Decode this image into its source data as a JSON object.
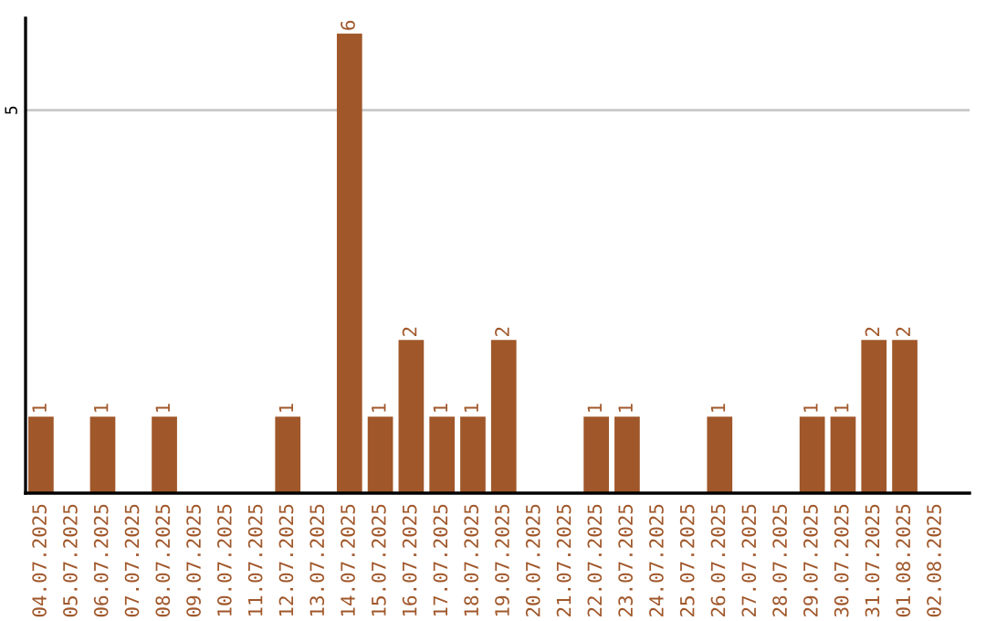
{
  "chart_data": {
    "type": "bar",
    "categories": [
      "04.07.2025",
      "05.07.2025",
      "06.07.2025",
      "07.07.2025",
      "08.07.2025",
      "09.07.2025",
      "10.07.2025",
      "11.07.2025",
      "12.07.2025",
      "13.07.2025",
      "14.07.2025",
      "15.07.2025",
      "16.07.2025",
      "17.07.2025",
      "18.07.2025",
      "19.07.2025",
      "20.07.2025",
      "21.07.2025",
      "22.07.2025",
      "23.07.2025",
      "24.07.2025",
      "25.07.2025",
      "26.07.2025",
      "27.07.2025",
      "28.07.2025",
      "29.07.2025",
      "30.07.2025",
      "31.07.2025",
      "01.08.2025",
      "02.08.2025"
    ],
    "values": [
      1,
      0,
      1,
      0,
      1,
      0,
      0,
      0,
      1,
      0,
      6,
      1,
      2,
      1,
      1,
      2,
      0,
      0,
      1,
      1,
      0,
      0,
      1,
      0,
      0,
      1,
      1,
      2,
      2,
      0
    ],
    "value_labels": [
      "1",
      null,
      "1",
      null,
      "1",
      null,
      null,
      null,
      "1",
      null,
      "6",
      "1",
      "2",
      "1",
      "1",
      "2",
      null,
      null,
      "1",
      "1",
      null,
      null,
      "1",
      null,
      null,
      "1",
      "1",
      "2",
      "2",
      null
    ],
    "color": "#a0572a",
    "ylim": [
      0,
      6.2
    ],
    "yticks": [
      5
    ],
    "grid": "y"
  }
}
